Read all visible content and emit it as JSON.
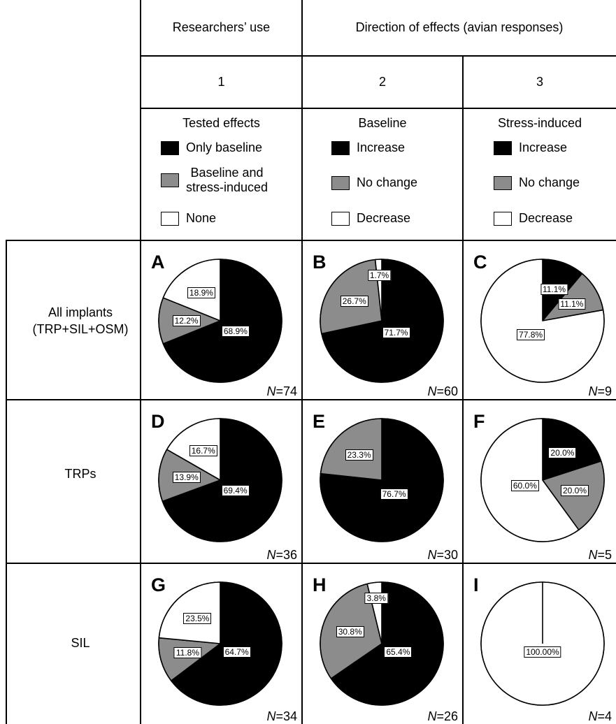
{
  "header": {
    "col1_top": "Researchers’ use",
    "col23_top": "Direction of effects (avian responses)",
    "col_numbers": [
      "1",
      "2",
      "3"
    ]
  },
  "legends": [
    {
      "title": "Tested effects",
      "items": [
        "Only baseline",
        "Baseline and\nstress-induced",
        "None"
      ]
    },
    {
      "title": "Baseline",
      "items": [
        "Increase",
        "No change",
        "Decrease"
      ]
    },
    {
      "title": "Stress-induced",
      "items": [
        "Increase",
        "No change",
        "Decrease"
      ]
    }
  ],
  "rows": [
    {
      "label": "All implants\n(TRP+SIL+OSM)"
    },
    {
      "label": "TRPs"
    },
    {
      "label": "SIL"
    }
  ],
  "colors": {
    "black": "#000000",
    "gray": "#8c8c8c",
    "white": "#ffffff"
  },
  "chart_data": [
    {
      "type": "pie",
      "panel": "A",
      "n_label": "N",
      "n_value": "=74",
      "labels": [
        "Only baseline",
        "Baseline and stress-induced",
        "None"
      ],
      "values": [
        68.9,
        12.2,
        18.9
      ],
      "value_labels": [
        "68.9%",
        "12.2%",
        "18.9%"
      ]
    },
    {
      "type": "pie",
      "panel": "B",
      "n_label": "N",
      "n_value": "=60",
      "labels": [
        "Increase",
        "No change",
        "Decrease"
      ],
      "values": [
        71.7,
        26.7,
        1.7
      ],
      "value_labels": [
        "71.7%",
        "26.7%",
        "1.7%"
      ]
    },
    {
      "type": "pie",
      "panel": "C",
      "n_label": "N",
      "n_value": "=9",
      "labels": [
        "Increase",
        "No change",
        "Decrease"
      ],
      "values": [
        11.1,
        11.1,
        77.8
      ],
      "value_labels": [
        "11.1%",
        "11.1%",
        "77.8%"
      ]
    },
    {
      "type": "pie",
      "panel": "D",
      "n_label": "N",
      "n_value": "=36",
      "labels": [
        "Only baseline",
        "Baseline and stress-induced",
        "None"
      ],
      "values": [
        69.4,
        13.9,
        16.7
      ],
      "value_labels": [
        "69.4%",
        "13.9%",
        "16.7%"
      ]
    },
    {
      "type": "pie",
      "panel": "E",
      "n_label": "N",
      "n_value": "=30",
      "labels": [
        "Increase",
        "No change",
        "Decrease"
      ],
      "values": [
        76.7,
        23.3,
        0
      ],
      "value_labels": [
        "76.7%",
        "23.3%",
        ""
      ]
    },
    {
      "type": "pie",
      "panel": "F",
      "n_label": "N",
      "n_value": "=5",
      "labels": [
        "Increase",
        "No change",
        "Decrease"
      ],
      "values": [
        20.0,
        20.0,
        60.0
      ],
      "value_labels": [
        "20.0%",
        "20.0%",
        "60.0%"
      ]
    },
    {
      "type": "pie",
      "panel": "G",
      "n_label": "N",
      "n_value": "=34",
      "labels": [
        "Only baseline",
        "Baseline and stress-induced",
        "None"
      ],
      "values": [
        64.7,
        11.8,
        23.5
      ],
      "value_labels": [
        "64.7%",
        "11.8%",
        "23.5%"
      ]
    },
    {
      "type": "pie",
      "panel": "H",
      "n_label": "N",
      "n_value": "=26",
      "labels": [
        "Increase",
        "No change",
        "Decrease"
      ],
      "values": [
        65.4,
        30.8,
        3.8
      ],
      "value_labels": [
        "65.4%",
        "30.8%",
        "3.8%"
      ]
    },
    {
      "type": "pie",
      "panel": "I",
      "n_label": "N",
      "n_value": "=4",
      "labels": [
        "Increase",
        "No change",
        "Decrease"
      ],
      "values": [
        0,
        0,
        100
      ],
      "value_labels": [
        "",
        "",
        "100.00%"
      ]
    }
  ]
}
